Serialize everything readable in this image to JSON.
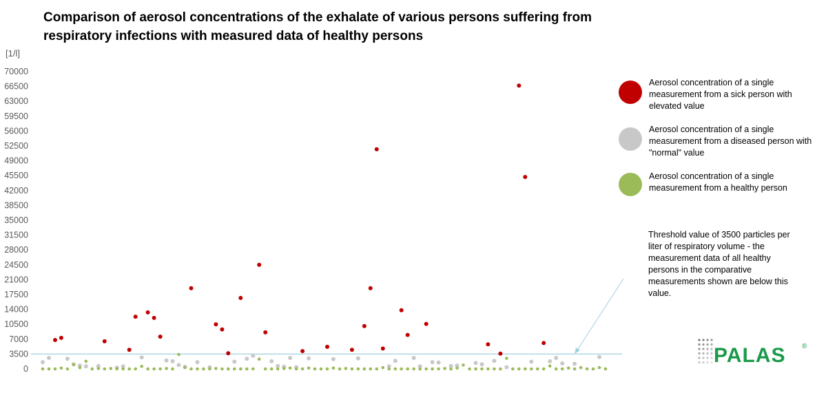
{
  "chart_data": {
    "type": "scatter",
    "title": "Comparison of aerosol concentrations of the exhalate of various persons suffering from respiratory infections with measured data of healthy persons",
    "ylabel": "[1/l]",
    "xlabel": "",
    "ylim": [
      0,
      70000
    ],
    "y_ticks": [
      0,
      3500,
      7000,
      10500,
      14000,
      17500,
      21000,
      24500,
      28000,
      31500,
      35000,
      38500,
      42000,
      45500,
      49000,
      52500,
      56000,
      59500,
      63000,
      66500,
      70000
    ],
    "xlim": [
      0,
      92
    ],
    "threshold": {
      "value": 3500,
      "color": "#9fd0e0"
    },
    "grid": false,
    "legend_position": "right",
    "series": [
      {
        "name": "Aerosol concentration of a single measurement from a sick person with elevated value",
        "color": "#c00000",
        "points": [
          [
            2,
            6800
          ],
          [
            3,
            7300
          ],
          [
            10,
            6500
          ],
          [
            14,
            4500
          ],
          [
            15,
            12300
          ],
          [
            17,
            13300
          ],
          [
            18,
            12000
          ],
          [
            19,
            7600
          ],
          [
            24,
            19000
          ],
          [
            28,
            10500
          ],
          [
            29,
            9300
          ],
          [
            30,
            3700
          ],
          [
            32,
            16700
          ],
          [
            35,
            24500
          ],
          [
            36,
            8600
          ],
          [
            42,
            4200
          ],
          [
            46,
            5200
          ],
          [
            50,
            4500
          ],
          [
            52,
            10100
          ],
          [
            53,
            19000
          ],
          [
            54,
            51700
          ],
          [
            55,
            4800
          ],
          [
            58,
            13800
          ],
          [
            59,
            8000
          ],
          [
            62,
            10600
          ],
          [
            72,
            5800
          ],
          [
            74,
            3600
          ],
          [
            77,
            66700
          ],
          [
            78,
            45200
          ],
          [
            81,
            6100
          ]
        ]
      },
      {
        "name": "Aerosol concentration of a single measurement from a diseased person with \"normal\" value",
        "color": "#c8c8c8",
        "points": [
          [
            0,
            1600
          ],
          [
            1,
            2600
          ],
          [
            4,
            2400
          ],
          [
            5,
            1100
          ],
          [
            6,
            800
          ],
          [
            7,
            600
          ],
          [
            9,
            700
          ],
          [
            12,
            300
          ],
          [
            13,
            600
          ],
          [
            16,
            2700
          ],
          [
            20,
            2000
          ],
          [
            21,
            1800
          ],
          [
            22,
            900
          ],
          [
            23,
            500
          ],
          [
            25,
            1600
          ],
          [
            27,
            400
          ],
          [
            31,
            1700
          ],
          [
            33,
            2400
          ],
          [
            34,
            3100
          ],
          [
            37,
            1800
          ],
          [
            38,
            700
          ],
          [
            39,
            500
          ],
          [
            40,
            2600
          ],
          [
            41,
            400
          ],
          [
            43,
            2500
          ],
          [
            47,
            2300
          ],
          [
            51,
            2500
          ],
          [
            56,
            600
          ],
          [
            57,
            1900
          ],
          [
            60,
            2600
          ],
          [
            61,
            600
          ],
          [
            63,
            1600
          ],
          [
            64,
            1500
          ],
          [
            66,
            700
          ],
          [
            67,
            800
          ],
          [
            70,
            1400
          ],
          [
            71,
            1100
          ],
          [
            73,
            1900
          ],
          [
            75,
            400
          ],
          [
            79,
            1700
          ],
          [
            82,
            1800
          ],
          [
            83,
            2600
          ],
          [
            84,
            1300
          ],
          [
            86,
            1200
          ],
          [
            90,
            2800
          ]
        ]
      },
      {
        "name": "Aerosol concentration of a single measurement from a healthy person",
        "color": "#9bbb59",
        "points": [
          [
            0,
            0
          ],
          [
            1,
            0
          ],
          [
            2,
            0
          ],
          [
            3,
            200
          ],
          [
            4,
            0
          ],
          [
            5,
            1000
          ],
          [
            6,
            300
          ],
          [
            7,
            1800
          ],
          [
            8,
            0
          ],
          [
            9,
            100
          ],
          [
            10,
            0
          ],
          [
            11,
            100
          ],
          [
            12,
            0
          ],
          [
            13,
            0
          ],
          [
            14,
            0
          ],
          [
            15,
            0
          ],
          [
            16,
            600
          ],
          [
            17,
            0
          ],
          [
            18,
            0
          ],
          [
            19,
            0
          ],
          [
            20,
            100
          ],
          [
            21,
            0
          ],
          [
            22,
            3400
          ],
          [
            23,
            300
          ],
          [
            24,
            0
          ],
          [
            25,
            0
          ],
          [
            26,
            0
          ],
          [
            27,
            0
          ],
          [
            28,
            100
          ],
          [
            29,
            0
          ],
          [
            30,
            0
          ],
          [
            31,
            0
          ],
          [
            32,
            0
          ],
          [
            33,
            0
          ],
          [
            34,
            0
          ],
          [
            35,
            2300
          ],
          [
            36,
            0
          ],
          [
            37,
            0
          ],
          [
            38,
            0
          ],
          [
            39,
            100
          ],
          [
            40,
            200
          ],
          [
            41,
            0
          ],
          [
            42,
            0
          ],
          [
            43,
            200
          ],
          [
            44,
            0
          ],
          [
            45,
            0
          ],
          [
            46,
            0
          ],
          [
            47,
            200
          ],
          [
            48,
            0
          ],
          [
            49,
            100
          ],
          [
            50,
            0
          ],
          [
            51,
            0
          ],
          [
            52,
            0
          ],
          [
            53,
            0
          ],
          [
            54,
            0
          ],
          [
            55,
            300
          ],
          [
            56,
            0
          ],
          [
            57,
            0
          ],
          [
            58,
            0
          ],
          [
            59,
            0
          ],
          [
            60,
            0
          ],
          [
            61,
            0
          ],
          [
            62,
            0
          ],
          [
            63,
            0
          ],
          [
            64,
            0
          ],
          [
            65,
            100
          ],
          [
            66,
            0
          ],
          [
            67,
            200
          ],
          [
            68,
            900
          ],
          [
            69,
            0
          ],
          [
            70,
            0
          ],
          [
            71,
            0
          ],
          [
            72,
            0
          ],
          [
            73,
            0
          ],
          [
            74,
            0
          ],
          [
            75,
            2500
          ],
          [
            76,
            0
          ],
          [
            77,
            0
          ],
          [
            78,
            0
          ],
          [
            79,
            0
          ],
          [
            80,
            0
          ],
          [
            81,
            0
          ],
          [
            82,
            700
          ],
          [
            83,
            0
          ],
          [
            84,
            0
          ],
          [
            85,
            200
          ],
          [
            86,
            0
          ],
          [
            87,
            300
          ],
          [
            88,
            0
          ],
          [
            89,
            0
          ],
          [
            90,
            300
          ],
          [
            91,
            0
          ]
        ]
      }
    ],
    "annotation": "Threshold value of 3500 particles per liter of respiratory volume - the measurement data of all healthy persons in the comparative measurements shown are below this value."
  },
  "logo": {
    "text": "PALAS",
    "reg": "®",
    "color": "#1a9a4a"
  }
}
